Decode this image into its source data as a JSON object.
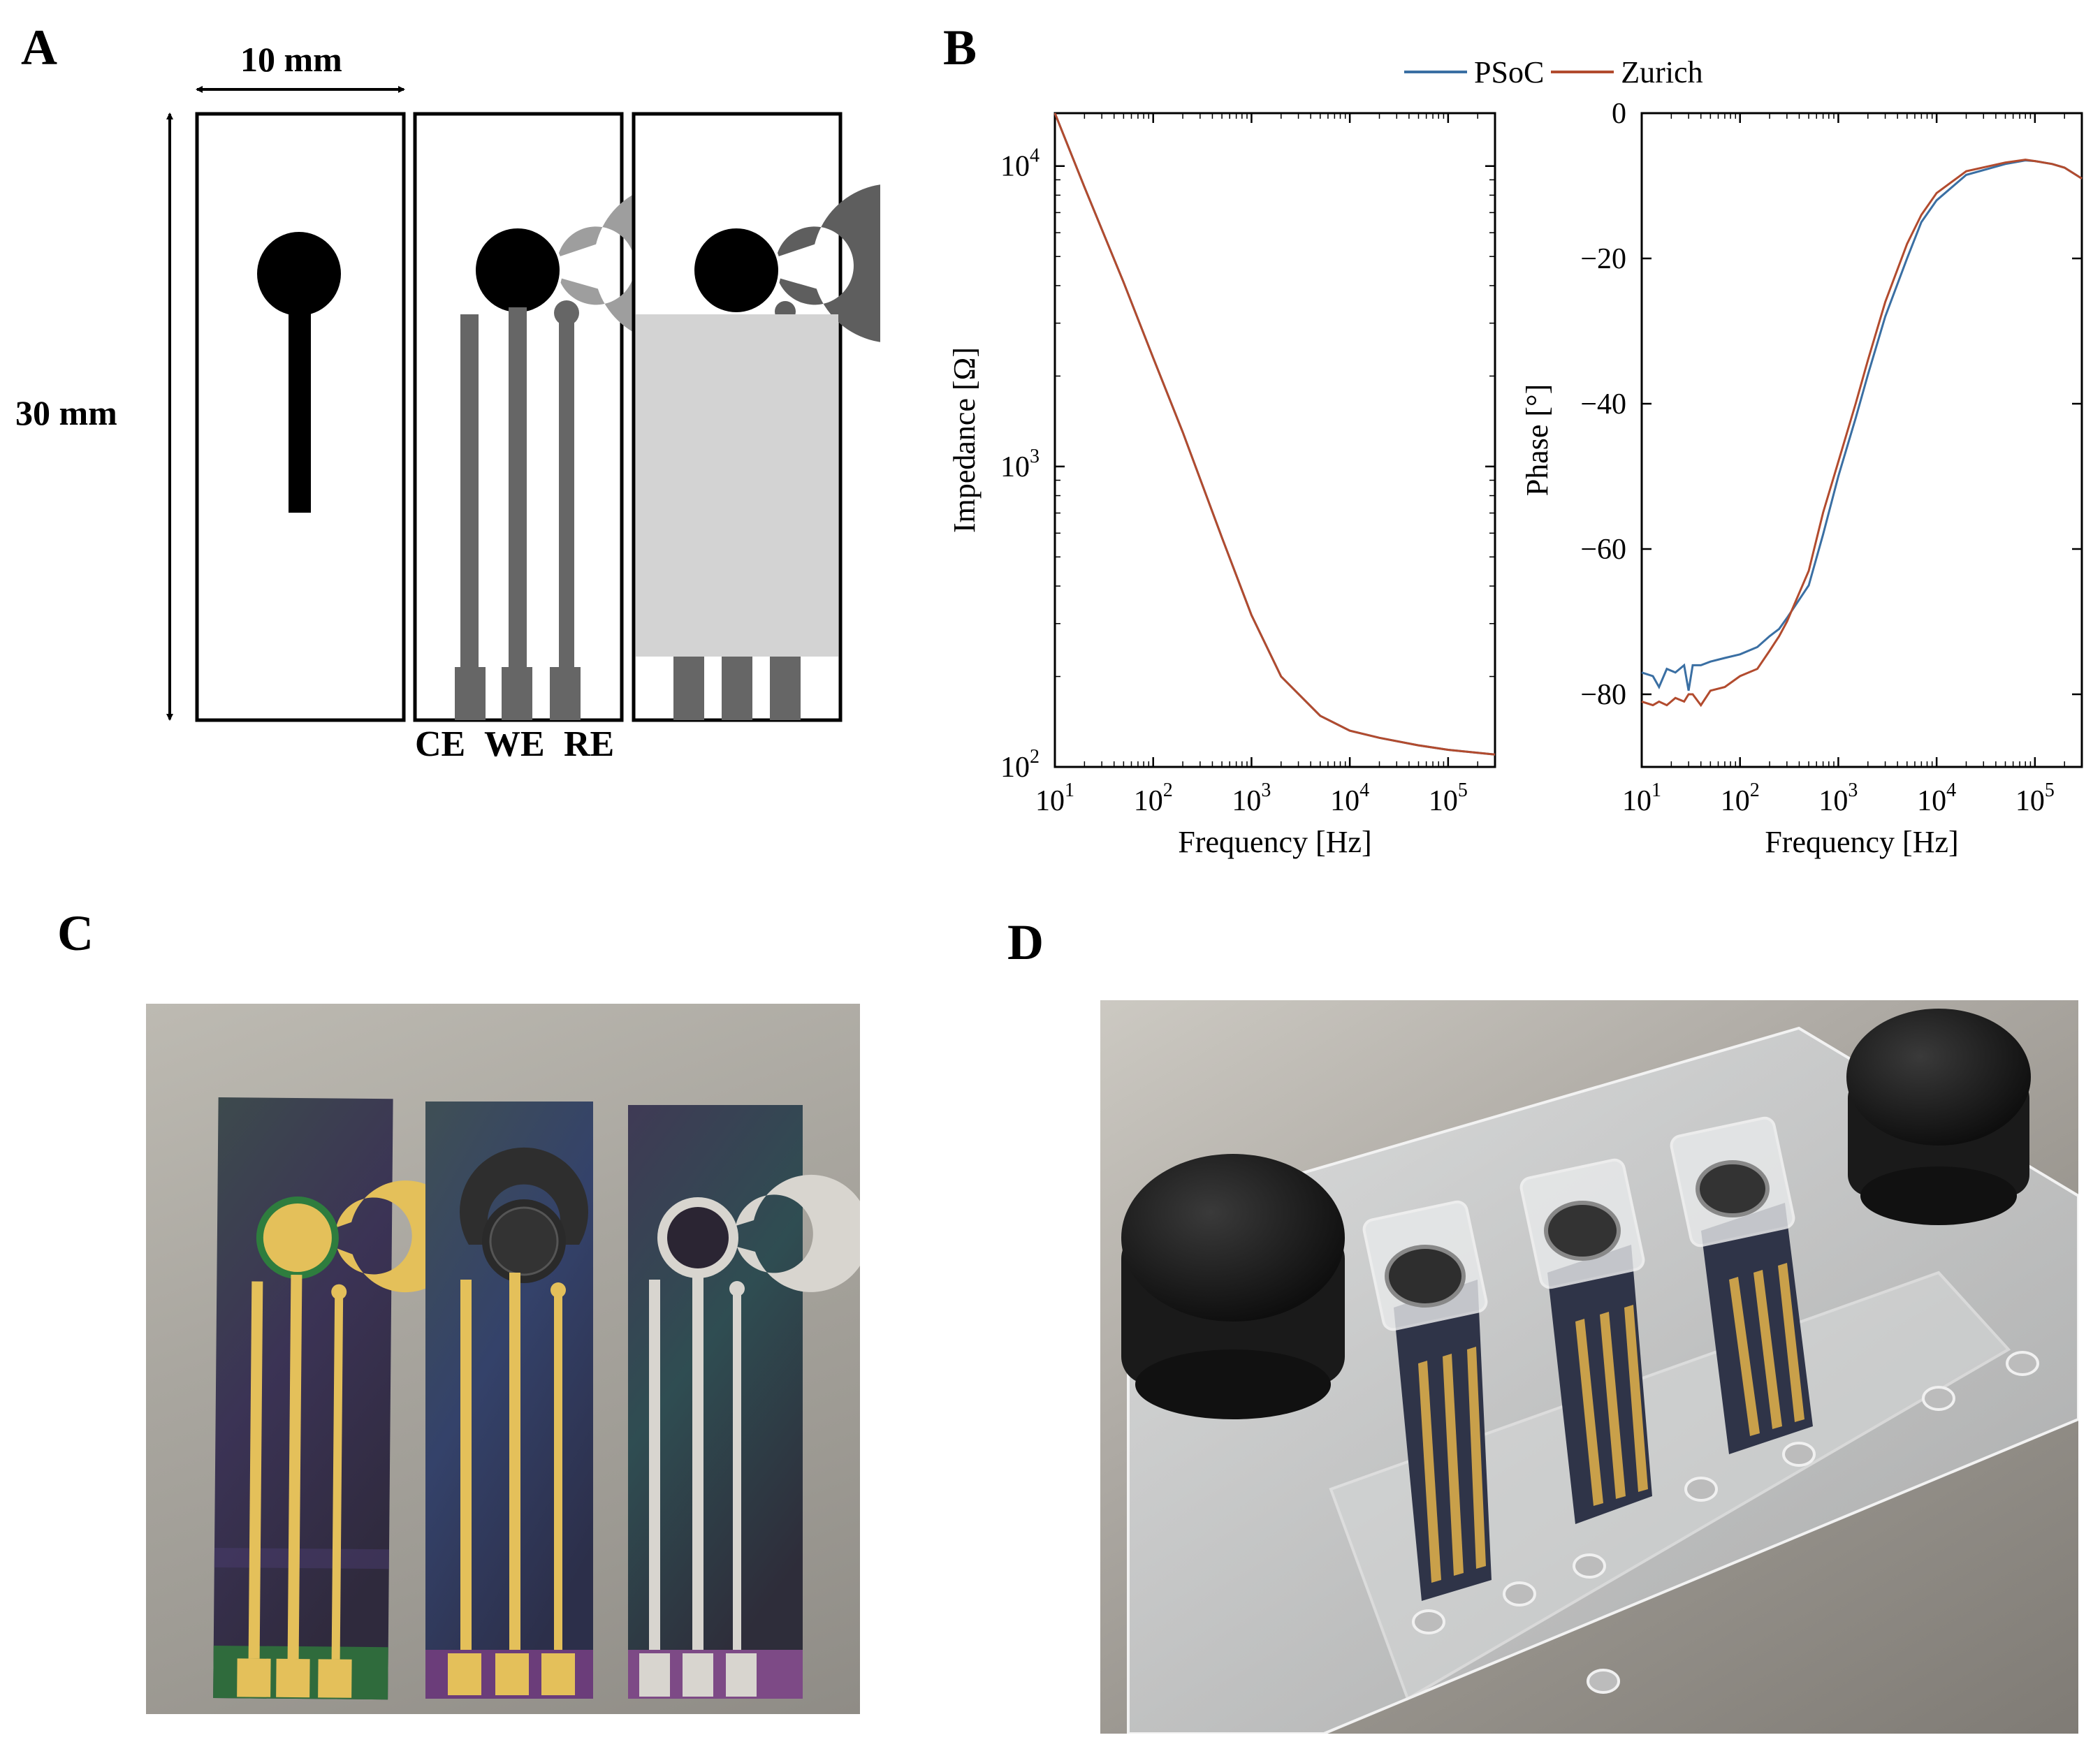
{
  "panels": {
    "A": {
      "label": "A",
      "width_dim": "10 mm",
      "height_dim": "30 mm",
      "electrodes": [
        "CE",
        "WE",
        "RE"
      ]
    },
    "B": {
      "label": "B"
    },
    "C": {
      "label": "C"
    },
    "D": {
      "label": "D"
    }
  },
  "colors": {
    "psoc": "#3a6fa3",
    "zurich": "#b24b2e",
    "trace_dark": "#000000",
    "trace_mid": "#666666",
    "ring_light": "#9e9e9e",
    "ring_dark": "#5e5e5e",
    "insulation": "#d3d3d3"
  },
  "chart_data": [
    {
      "type": "line",
      "name_key": "impedance",
      "title": "",
      "xlabel": "Frequency [Hz]",
      "ylabel": "Impedance [Ω]",
      "xscale": "log",
      "yscale": "log",
      "xlim": [
        10,
        300000
      ],
      "ylim": [
        100,
        15000
      ],
      "x_ticks": [
        "10^1",
        "10^2",
        "10^3",
        "10^4",
        "10^5"
      ],
      "y_ticks": [
        "10^2",
        "10^3",
        "10^4"
      ],
      "legend": {
        "placement": "top",
        "entries": [
          "PSoC",
          "Zurich"
        ]
      },
      "series": [
        {
          "name": "PSoC",
          "x": [
            10,
            20,
            50,
            100,
            200,
            500,
            1000,
            2000,
            5000,
            10000,
            20000,
            50000,
            100000,
            300000
          ],
          "y": [
            15000,
            8500,
            4100,
            2300,
            1300,
            580,
            320,
            200,
            148,
            132,
            125,
            118,
            114,
            110
          ]
        },
        {
          "name": "Zurich",
          "x": [
            10,
            20,
            50,
            100,
            200,
            500,
            1000,
            2000,
            5000,
            10000,
            20000,
            50000,
            100000,
            300000
          ],
          "y": [
            15000,
            8500,
            4100,
            2300,
            1300,
            580,
            320,
            200,
            148,
            132,
            125,
            118,
            114,
            110
          ]
        }
      ]
    },
    {
      "type": "line",
      "name_key": "phase",
      "title": "",
      "xlabel": "Frequency [Hz]",
      "ylabel": "Phase [°]",
      "xscale": "log",
      "yscale": "linear",
      "xlim": [
        10,
        300000
      ],
      "ylim": [
        -90,
        0
      ],
      "x_ticks": [
        "10^1",
        "10^2",
        "10^3",
        "10^4",
        "10^5"
      ],
      "y_ticks": [
        "0",
        "−20",
        "−40",
        "−60",
        "−80"
      ],
      "series": [
        {
          "name": "PSoC",
          "x": [
            10,
            13,
            15,
            18,
            22,
            27,
            30,
            33,
            40,
            50,
            70,
            100,
            150,
            200,
            250,
            300,
            500,
            700,
            1000,
            1500,
            2000,
            3000,
            5000,
            7000,
            10000,
            20000,
            50000,
            80000,
            100000,
            150000,
            200000,
            300000
          ],
          "y": [
            -77,
            -77.5,
            -79,
            -76.5,
            -77,
            -76,
            -79.5,
            -76,
            -76,
            -75.5,
            -75,
            -74.5,
            -73.5,
            -72,
            -71,
            -69.5,
            -65,
            -58,
            -50,
            -42,
            -36,
            -28,
            -20,
            -15,
            -12,
            -8.5,
            -7,
            -6.5,
            -6.6,
            -7,
            -7.5,
            -9
          ]
        },
        {
          "name": "Zurich",
          "x": [
            10,
            13,
            15,
            18,
            22,
            27,
            30,
            33,
            40,
            50,
            70,
            100,
            150,
            200,
            250,
            300,
            500,
            700,
            1000,
            1500,
            2000,
            3000,
            5000,
            7000,
            10000,
            20000,
            50000,
            80000,
            100000,
            150000,
            200000,
            300000
          ],
          "y": [
            -81,
            -81.5,
            -81,
            -81.5,
            -80.5,
            -81,
            -80,
            -80,
            -81.5,
            -79.5,
            -79,
            -77.5,
            -76.5,
            -74,
            -72,
            -70,
            -63,
            -55,
            -48,
            -40,
            -34,
            -26,
            -18,
            -14,
            -11,
            -8,
            -6.8,
            -6.4,
            -6.6,
            -7,
            -7.5,
            -9
          ]
        }
      ]
    }
  ]
}
